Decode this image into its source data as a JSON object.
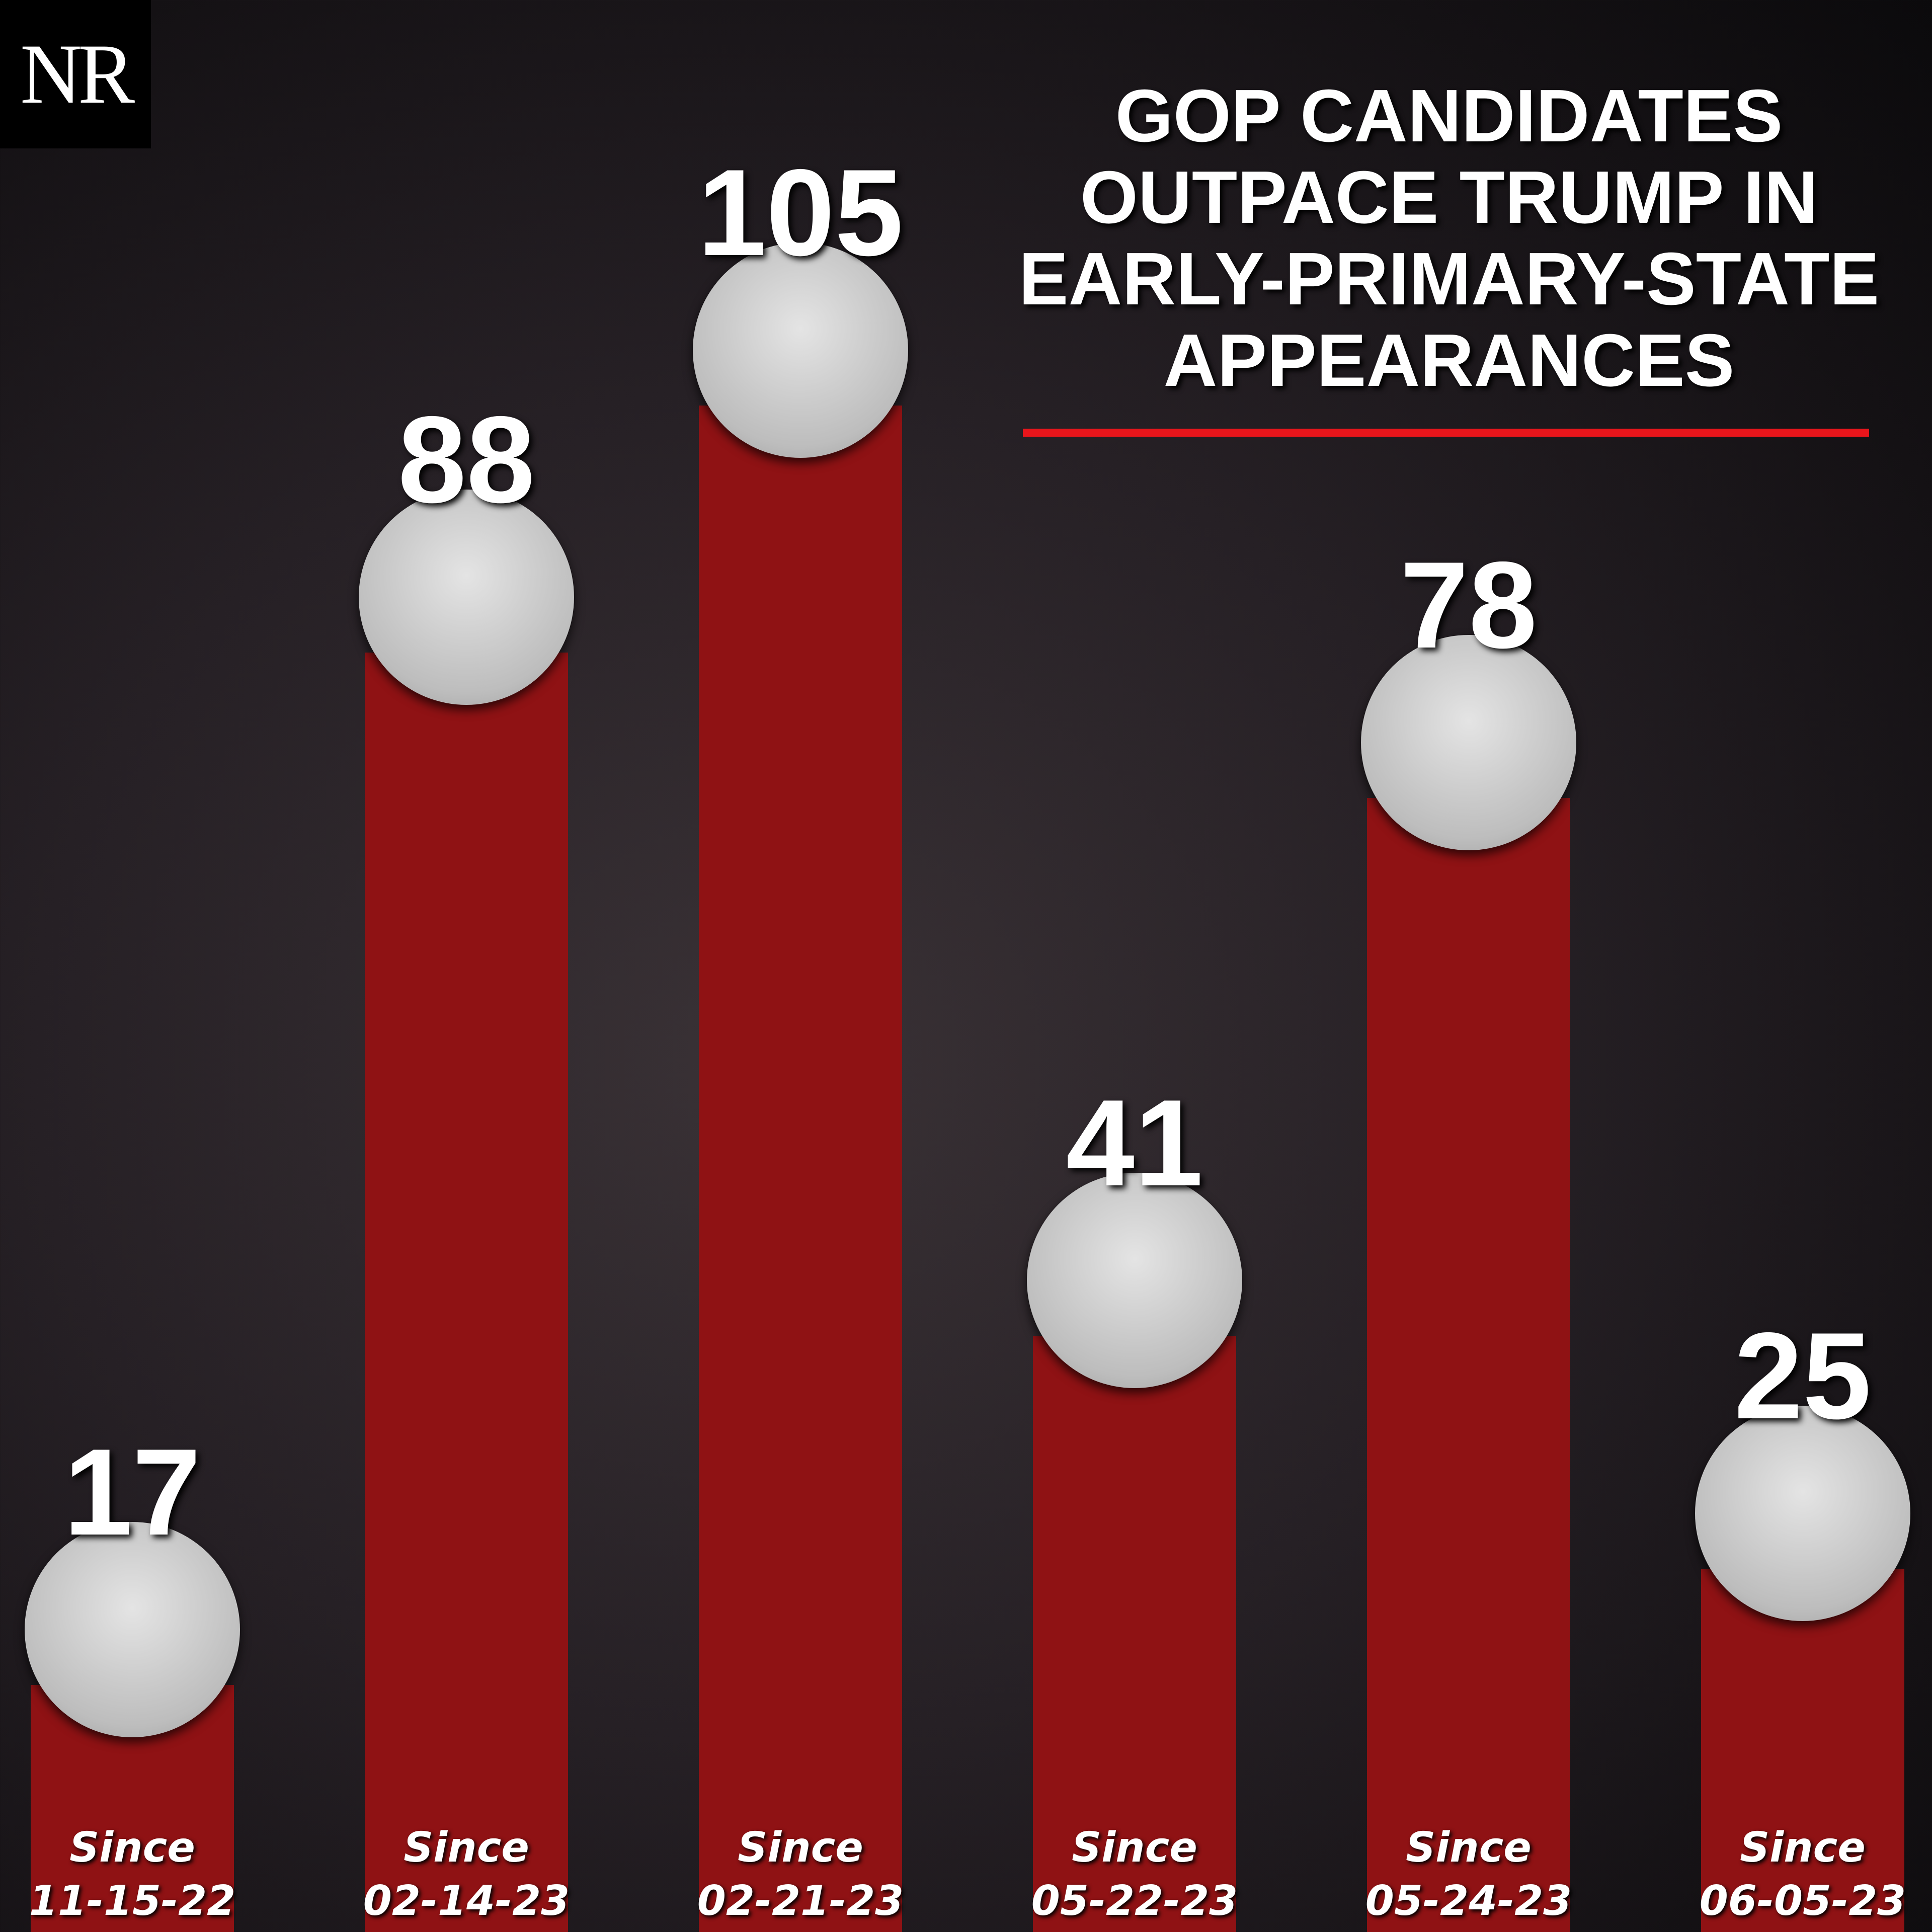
{
  "logo": "NR",
  "chart_data": {
    "type": "bar",
    "title": "GOP CANDIDATES OUTPACE TRUMP IN EARLY-PRIMARY-STATE APPEARANCES",
    "categories": [
      "Since 11-15-22",
      "Since 02-14-23",
      "Since 02-21-23",
      "Since 05-22-23",
      "Since 05-24-23",
      "Since 06-05-23"
    ],
    "values": [
      17,
      88,
      105,
      41,
      78,
      25
    ],
    "color": "#8f1214"
  }
}
